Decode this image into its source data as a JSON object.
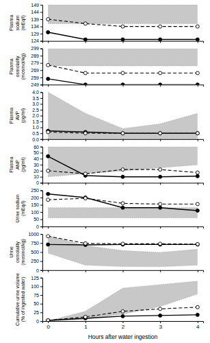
{
  "chart_data": [
    {
      "type": "line",
      "ylabel": "Plasma\nsodium\n(mEq/l)",
      "x": [
        0,
        1,
        2,
        3,
        4
      ],
      "xlim": [
        -0.15,
        4.15
      ],
      "xticks": [
        0,
        1,
        2,
        3,
        4
      ],
      "tick_labels": "y",
      "ylim": [
        124,
        149
      ],
      "yticks": [
        124,
        129,
        134,
        139,
        144,
        149
      ],
      "series": [
        {
          "values": [
            130,
            125,
            125,
            125,
            125
          ],
          "color": "#000000",
          "line_style": "solid",
          "marker": "circle"
        },
        {
          "values": [
            139,
            136,
            134,
            134,
            134
          ],
          "color": "#000000",
          "line_style": "dashed",
          "marker": "open-circle"
        }
      ],
      "normal_range": {
        "lower": [
          136,
          136,
          136,
          136,
          136
        ],
        "upper": [
          149,
          149,
          149,
          149,
          149
        ],
        "color": "#c8c8c8"
      }
    },
    {
      "type": "line",
      "ylabel": "Plasma\nosmolality\n(mosmol/kg)",
      "x": [
        0,
        1,
        2,
        3,
        4
      ],
      "xlim": [
        -0.15,
        4.15
      ],
      "xticks": [
        0,
        1,
        2,
        3,
        4
      ],
      "tick_labels": "y",
      "ylim": [
        249,
        299
      ],
      "yticks": [
        249,
        259,
        269,
        279,
        289,
        299
      ],
      "series": [
        {
          "values": [
            257,
            249,
            249,
            249,
            249
          ],
          "color": "#000000",
          "line_style": "solid",
          "marker": "circle"
        },
        {
          "values": [
            276,
            265,
            265,
            265,
            265
          ],
          "color": "#000000",
          "line_style": "dashed",
          "marker": "open-circle"
        }
      ],
      "normal_range": {
        "lower": [
          275,
          275,
          275,
          275,
          275
        ],
        "upper": [
          299,
          299,
          299,
          299,
          299
        ],
        "color": "#c8c8c8"
      }
    },
    {
      "type": "line",
      "ylabel": "Plasma\nAVP\n(pg/ml)",
      "x": [
        0,
        1,
        2,
        3,
        4
      ],
      "xlim": [
        -0.15,
        4.15
      ],
      "xticks": [
        0,
        1,
        2,
        3,
        4
      ],
      "tick_labels": "y",
      "ylim": [
        0.0,
        4.0
      ],
      "yticks": [
        {
          "value": 0.0,
          "label": "0.0"
        },
        0.5,
        {
          "value": 1.0,
          "label": "1.0"
        },
        1.5,
        {
          "value": 2.0,
          "label": "2.0"
        },
        2.5,
        {
          "value": 3.0,
          "label": "3.0"
        },
        3.5,
        {
          "value": 4.0,
          "label": "4.0"
        }
      ],
      "series": [
        {
          "values": [
            0.7,
            0.6,
            0.5,
            0.5,
            0.5
          ],
          "color": "#000000",
          "line_style": "solid",
          "marker": "circle"
        },
        {
          "values": [
            0.6,
            0.5,
            0.5,
            0.5,
            0.5
          ],
          "color": "#000000",
          "line_style": "dashed",
          "marker": "open-circle"
        }
      ],
      "normal_range": {
        "lower": [
          0.0,
          0.0,
          0.0,
          0.0,
          0.0
        ],
        "upper": [
          4.0,
          2.2,
          0.9,
          1.3,
          2.2
        ],
        "color": "#c8c8c8"
      }
    },
    {
      "type": "line",
      "ylabel": "Plasma\nANP\n(pg/ml)",
      "x": [
        0,
        1,
        2,
        3,
        4
      ],
      "xlim": [
        -0.15,
        4.15
      ],
      "xticks": [
        0,
        1,
        2,
        3,
        4
      ],
      "tick_labels": "y",
      "ylim": [
        0,
        60
      ],
      "yticks": [
        0,
        10,
        20,
        30,
        40,
        50,
        60
      ],
      "series": [
        {
          "values": [
            44,
            12,
            10,
            10,
            11
          ],
          "color": "#000000",
          "line_style": "solid",
          "marker": "circle"
        },
        {
          "values": [
            20,
            15,
            22,
            22,
            17
          ],
          "color": "#000000",
          "line_style": "dashed",
          "marker": "open-circle"
        }
      ],
      "normal_range": {
        "lower": [
          10,
          15,
          20,
          25,
          30
        ],
        "upper": [
          60,
          60,
          60,
          60,
          60
        ],
        "color": "#c8c8c8"
      }
    },
    {
      "type": "line",
      "ylabel": "Urine sodium\n(mEq/l)",
      "x": [
        0,
        1,
        2,
        3,
        4
      ],
      "xlim": [
        -0.15,
        4.15
      ],
      "xticks": [
        0,
        1,
        2,
        3,
        4
      ],
      "tick_labels": "y",
      "ylim": [
        0,
        250
      ],
      "yticks": [
        0,
        50,
        100,
        150,
        200,
        250
      ],
      "series": [
        {
          "values": [
            225,
            200,
            130,
            130,
            110
          ],
          "color": "#000000",
          "line_style": "solid",
          "marker": "circle"
        },
        {
          "values": [
            185,
            195,
            160,
            155,
            155
          ],
          "color": "#000000",
          "line_style": "dashed",
          "marker": "open-circle"
        }
      ],
      "normal_range": {
        "lower": [
          60,
          60,
          60,
          60,
          60
        ],
        "upper": [
          130,
          130,
          130,
          130,
          130
        ],
        "color": "#c8c8c8"
      }
    },
    {
      "type": "line",
      "ylabel": "Urine\nosmolality\n(mosmol/kg)",
      "x": [
        0,
        1,
        2,
        3,
        4
      ],
      "xlim": [
        -0.15,
        4.15
      ],
      "xticks": [
        0,
        1,
        2,
        3,
        4
      ],
      "tick_labels": "y",
      "ylim": [
        0,
        1000
      ],
      "yticks": [
        0,
        250,
        500,
        750,
        1000
      ],
      "series": [
        {
          "values": [
            710,
            700,
            710,
            710,
            710
          ],
          "color": "#000000",
          "line_style": "solid",
          "marker": "circle"
        },
        {
          "values": [
            940,
            740,
            730,
            730,
            720
          ],
          "color": "#000000",
          "line_style": "dashed",
          "marker": "open-circle"
        }
      ],
      "normal_range": {
        "lower": [
          470,
          140,
          100,
          95,
          140
        ],
        "upper": [
          950,
          680,
          540,
          490,
          580
        ],
        "color": "#c8c8c8"
      }
    },
    {
      "type": "line",
      "ylabel": "Cumulative urine volume\n(% of ingested water)",
      "xlabel": "Hours after water ingestion",
      "x": [
        0,
        1,
        2,
        3,
        4
      ],
      "xlim": [
        -0.15,
        4.15
      ],
      "xticks": [
        0,
        1,
        2,
        3,
        4
      ],
      "ylim": [
        0,
        125
      ],
      "yticks": [
        0,
        25,
        50,
        75,
        100,
        125
      ],
      "series": [
        {
          "values": [
            2,
            8,
            14,
            16,
            18
          ],
          "color": "#000000",
          "line_style": "solid",
          "marker": "circle"
        },
        {
          "values": [
            2,
            12,
            28,
            35,
            40
          ],
          "color": "#000000",
          "line_style": "dashed",
          "marker": "open-circle"
        }
      ],
      "normal_range": {
        "lower": [
          0,
          5,
          20,
          42,
          78
        ],
        "upper": [
          0,
          28,
          95,
          105,
          115
        ],
        "color": "#c8c8c8"
      }
    }
  ]
}
